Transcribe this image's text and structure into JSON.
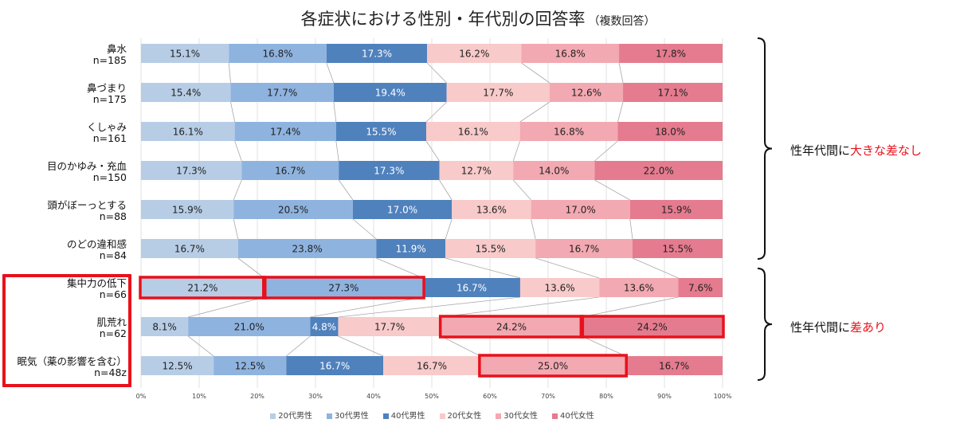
{
  "title": "各症状における性別・年代別の回答率",
  "subtitle": "（複数回答）",
  "colors": [
    "#b7cde6",
    "#8fb3df",
    "#4f81bd",
    "#f8caca",
    "#f3a9b1",
    "#e57b8e"
  ],
  "highlight_color": "#e8111b",
  "annotations": [
    {
      "prefix": "性年代間に",
      "highlight": "大きな差なし"
    },
    {
      "prefix": "性年代間に",
      "highlight": "差あり"
    }
  ],
  "chart_data": {
    "type": "bar",
    "orientation": "horizontal",
    "stacked": true,
    "xlim": [
      0,
      100
    ],
    "xticks": [
      "0%",
      "10%",
      "20%",
      "30%",
      "40%",
      "50%",
      "60%",
      "70%",
      "80%",
      "90%",
      "100%"
    ],
    "categories": [
      {
        "name": "鼻水",
        "n": "n=185"
      },
      {
        "name": "鼻づまり",
        "n": "n=175"
      },
      {
        "name": "くしゃみ",
        "n": "n=161"
      },
      {
        "name": "目のかゆみ・充血",
        "n": "n=150"
      },
      {
        "name": "頭がぼーっとする",
        "n": "n=88"
      },
      {
        "name": "のどの違和感",
        "n": "n=84"
      },
      {
        "name": "集中力の低下",
        "n": "n=66"
      },
      {
        "name": "肌荒れ",
        "n": "n=62"
      },
      {
        "name": "眠気（薬の影響を含む）",
        "n": "n=48z"
      }
    ],
    "series": [
      {
        "name": "20代男性",
        "values": [
          15.1,
          15.4,
          16.1,
          17.3,
          15.9,
          16.7,
          21.2,
          8.1,
          12.5
        ],
        "labels": [
          "15.1%",
          "15.4%",
          "16.1%",
          "17.3%",
          "15.9%",
          "16.7%",
          "21.2%",
          "8.1%",
          "12.5%"
        ]
      },
      {
        "name": "30代男性",
        "values": [
          16.8,
          17.7,
          17.4,
          16.7,
          20.5,
          23.8,
          27.3,
          21.0,
          12.5
        ],
        "labels": [
          "16.8%",
          "17.7%",
          "17.4%",
          "16.7%",
          "20.5%",
          "23.8%",
          "27.3%",
          "21.0%",
          "12.5%"
        ]
      },
      {
        "name": "40代男性",
        "values": [
          17.3,
          19.4,
          15.5,
          17.3,
          17.0,
          11.9,
          16.7,
          4.8,
          16.7
        ],
        "labels": [
          "17.3%",
          "19.4%",
          "15.5%",
          "17.3%",
          "17.0%",
          "11.9%",
          "16.7%",
          "4.8%",
          "16.7%"
        ]
      },
      {
        "name": "20代女性",
        "values": [
          16.2,
          17.7,
          16.1,
          12.7,
          13.6,
          15.5,
          13.6,
          17.7,
          16.7
        ],
        "labels": [
          "16.2%",
          "17.7%",
          "16.1%",
          "12.7%",
          "13.6%",
          "15.5%",
          "13.6%",
          "17.7%",
          "16.7%"
        ]
      },
      {
        "name": "30代女性",
        "values": [
          16.8,
          12.6,
          16.8,
          14.0,
          17.0,
          16.7,
          13.6,
          24.2,
          25.0
        ],
        "labels": [
          "16.8%",
          "12.6%",
          "16.8%",
          "14.0%",
          "17.0%",
          "16.7%",
          "13.6%",
          "24.2%",
          "25.0%"
        ]
      },
      {
        "name": "40代女性",
        "values": [
          17.8,
          17.1,
          18.0,
          22.0,
          15.9,
          15.5,
          7.6,
          24.2,
          16.7
        ],
        "labels": [
          "17.8%",
          "17.1%",
          "18.0%",
          "22.0%",
          "15.9%",
          "15.5%",
          "7.6%",
          "24.2%",
          "16.7%"
        ]
      }
    ],
    "highlighted_segments": [
      [
        6,
        0
      ],
      [
        6,
        1
      ],
      [
        7,
        4
      ],
      [
        7,
        5
      ],
      [
        8,
        4
      ]
    ],
    "legend_position": "bottom"
  }
}
